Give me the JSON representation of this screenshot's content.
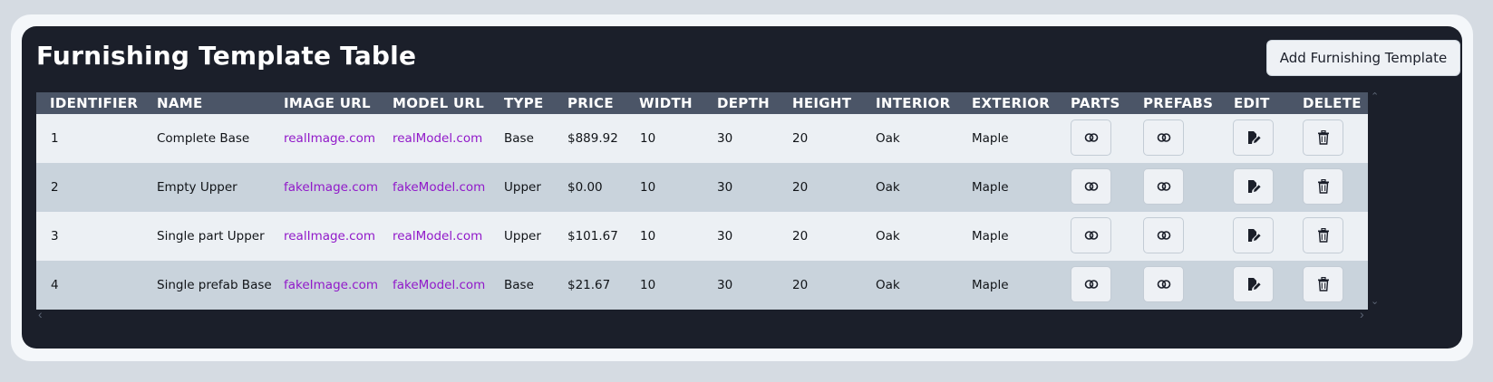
{
  "page": {
    "title": "Furnishing Template Table"
  },
  "toolbar": {
    "add_label": "Add Furnishing Template"
  },
  "table": {
    "columns": [
      "IDENTIFIER",
      "NAME",
      "IMAGE URL",
      "MODEL URL",
      "TYPE",
      "PRICE",
      "WIDTH",
      "DEPTH",
      "HEIGHT",
      "INTERIOR",
      "EXTERIOR",
      "PARTS",
      "PREFABS",
      "EDIT",
      "DELETE"
    ],
    "rows": [
      {
        "id": "1",
        "name": "Complete Base",
        "image_url": "realImage.com",
        "model_url": "realModel.com",
        "type": "Base",
        "price": "$889.92",
        "width": "10",
        "depth": "30",
        "height": "20",
        "interior": "Oak",
        "exterior": "Maple"
      },
      {
        "id": "2",
        "name": "Empty Upper",
        "image_url": "fakeImage.com",
        "model_url": "fakeModel.com",
        "type": "Upper",
        "price": "$0.00",
        "width": "10",
        "depth": "30",
        "height": "20",
        "interior": "Oak",
        "exterior": "Maple"
      },
      {
        "id": "3",
        "name": "Single part Upper",
        "image_url": "realImage.com",
        "model_url": "realModel.com",
        "type": "Upper",
        "price": "$101.67",
        "width": "10",
        "depth": "30",
        "height": "20",
        "interior": "Oak",
        "exterior": "Maple"
      },
      {
        "id": "4",
        "name": "Single prefab Base",
        "image_url": "fakeImage.com",
        "model_url": "fakeModel.com",
        "type": "Base",
        "price": "$21.67",
        "width": "10",
        "depth": "30",
        "height": "20",
        "interior": "Oak",
        "exterior": "Maple"
      }
    ],
    "action_icons": {
      "parts": "link-icon",
      "prefabs": "link-icon",
      "edit": "edit-icon",
      "delete": "trash-icon"
    }
  },
  "colors": {
    "panel_bg": "#1b1f2a",
    "header_bg": "#4b5567",
    "row_odd": "#ecf0f4",
    "row_even": "#c9d3dc",
    "link": "#9119c9"
  }
}
